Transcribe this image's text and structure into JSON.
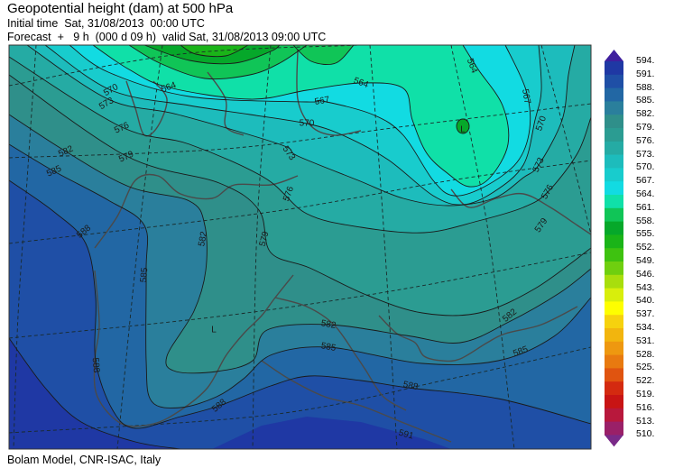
{
  "header": {
    "title": "Geopotential height (dam) at 500 hPa",
    "initial_time": "Initial time  Sat, 31/08/2013  00:00 UTC",
    "forecast": "Forecast  +   9 h  (000 d 09 h)  valid Sat, 31/08/2013 09:00 UTC"
  },
  "footer": "Bolam Model, CNR-ISAC, Italy",
  "map": {
    "variable": "Geopotential height at 500 hPa",
    "units": "dam",
    "low_markers": [
      "L",
      "L"
    ],
    "contour_labels": [
      "564",
      "570",
      "573",
      "576",
      "579",
      "582",
      "585",
      "588",
      "564",
      "567",
      "564",
      "567",
      "570",
      "573",
      "576",
      "579",
      "573",
      "576",
      "579",
      "582",
      "585",
      "588",
      "582",
      "585",
      "588",
      "588",
      "591",
      "582",
      "585",
      "570"
    ]
  },
  "colorbar": {
    "labels": [
      "594.",
      "591.",
      "588.",
      "585.",
      "582.",
      "579.",
      "576.",
      "573.",
      "570.",
      "567.",
      "564.",
      "561.",
      "558.",
      "555.",
      "552.",
      "549.",
      "546.",
      "543.",
      "540.",
      "537.",
      "534.",
      "531.",
      "528.",
      "525.",
      "522.",
      "519.",
      "516.",
      "513.",
      "510."
    ],
    "top_arrow_color": "#3f1f9e",
    "bottom_arrow_color": "#7a2a88",
    "colors": [
      "#1f38a4",
      "#1f4fa6",
      "#2267a4",
      "#2a7f9c",
      "#2f8f8a",
      "#2b9c92",
      "#25aba4",
      "#1dbcbc",
      "#18cccd",
      "#12dbe2",
      "#10e0a8",
      "#10c557",
      "#06a82a",
      "#1ab418",
      "#3ec210",
      "#6fcf0f",
      "#a8de0d",
      "#d8ee0c",
      "#fefe00",
      "#f6d20e",
      "#f2b50e",
      "#ee9810",
      "#e87a10",
      "#e05410",
      "#d42a10",
      "#c81414",
      "#b8183c",
      "#9a2068"
    ]
  }
}
